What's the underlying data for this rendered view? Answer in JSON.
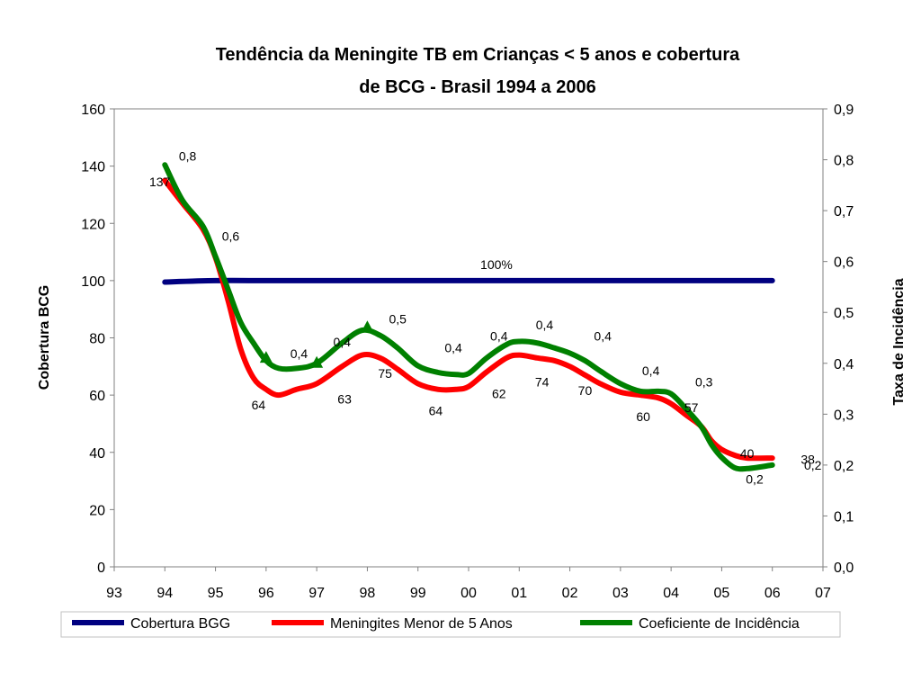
{
  "chart_data": {
    "type": "line",
    "title_line1": "Tendência da Meningite TB em Crianças < 5 anos e cobertura",
    "title_line2": "de BCG - Brasil 1994 a 2006",
    "ylabel_left": "Cobertura BCG",
    "ylabel_right": "Taxa de Incidência",
    "x_ticks": [
      "93",
      "94",
      "95",
      "96",
      "97",
      "98",
      "99",
      "00",
      "01",
      "02",
      "03",
      "04",
      "05",
      "06",
      "07"
    ],
    "y_left_ticks": [
      "0",
      "20",
      "40",
      "60",
      "80",
      "100",
      "120",
      "140",
      "160"
    ],
    "y_right_ticks": [
      "0,0",
      "0,1",
      "0,2",
      "0,3",
      "0,4",
      "0,5",
      "0,6",
      "0,7",
      "0,8",
      "0,9"
    ],
    "ylim_left": [
      0,
      160
    ],
    "ylim_right": [
      0,
      0.9
    ],
    "xlim": [
      1993,
      2007
    ],
    "colors": {
      "cobertura": "#000080",
      "meningites": "#ff0000",
      "coeficiente": "#008000",
      "plot_border": "#808080"
    },
    "series": [
      {
        "key": "cobertura",
        "name": "Cobertura BGG",
        "axis": "left",
        "x": [
          1994,
          1995,
          1996,
          1997,
          1998,
          1999,
          2000,
          2001,
          2002,
          2003,
          2004,
          2005,
          2006
        ],
        "values": [
          99.5,
          100,
          100,
          100,
          100,
          100,
          100,
          100,
          100,
          100,
          100,
          100,
          100
        ]
      },
      {
        "key": "meningites",
        "name": "Meningites Menor de 5 Anos",
        "axis": "left",
        "x": [
          1994,
          1994.35,
          1994.75,
          1995.0,
          1995.25,
          1995.5,
          1995.75,
          1996.0,
          1996.25,
          1996.6,
          1997.0,
          1997.5,
          1997.9,
          1998.25,
          1998.6,
          1999.0,
          1999.4,
          1999.75,
          2000.0,
          2000.35,
          2000.75,
          2001.0,
          2001.35,
          2001.7,
          2002.0,
          2002.3,
          2002.6,
          2003.0,
          2003.4,
          2003.75,
          2004.0,
          2004.3,
          2004.6,
          2004.8,
          2005.0,
          2005.25,
          2005.5,
          2006.0
        ],
        "values": [
          135,
          127,
          118,
          108,
          93,
          76,
          66,
          62,
          60,
          62,
          64,
          70,
          74,
          73,
          69,
          64,
          62,
          62,
          63,
          68,
          73,
          74,
          73,
          72,
          70,
          67,
          64,
          61,
          60,
          59,
          57,
          53,
          49,
          44,
          41,
          39,
          38,
          38
        ]
      },
      {
        "key": "coeficiente",
        "name": "Coeficiente de Incidência",
        "axis": "right",
        "x": [
          1994,
          1994.35,
          1994.75,
          1995.0,
          1995.25,
          1995.5,
          1995.75,
          1996.0,
          1996.25,
          1996.6,
          1997.0,
          1997.5,
          1997.9,
          1998.25,
          1998.6,
          1999.0,
          1999.4,
          1999.75,
          2000.0,
          2000.35,
          2000.75,
          2001.0,
          2001.35,
          2001.7,
          2002.0,
          2002.3,
          2002.6,
          2003.0,
          2003.4,
          2003.75,
          2004.0,
          2004.3,
          2004.6,
          2004.8,
          2005.0,
          2005.25,
          2005.5,
          2006.0
        ],
        "values": [
          0.79,
          0.72,
          0.67,
          0.61,
          0.545,
          0.48,
          0.44,
          0.405,
          0.39,
          0.39,
          0.4,
          0.44,
          0.465,
          0.455,
          0.43,
          0.395,
          0.382,
          0.378,
          0.38,
          0.41,
          0.437,
          0.443,
          0.44,
          0.43,
          0.42,
          0.405,
          0.385,
          0.36,
          0.345,
          0.345,
          0.34,
          0.31,
          0.275,
          0.24,
          0.215,
          0.195,
          0.193,
          0.2
        ]
      }
    ],
    "markers": [
      {
        "series": "coeficiente",
        "x": 1996,
        "value": 0.41
      },
      {
        "series": "coeficiente",
        "x": 1997,
        "value": 0.4
      },
      {
        "series": "coeficiente",
        "x": 1998,
        "value": 0.47
      }
    ],
    "annotations": [
      {
        "text": "0,8",
        "x": 1994.45,
        "y_left": 142
      },
      {
        "text": "137",
        "x": 1993.9,
        "y_left": 133
      },
      {
        "text": "0,6",
        "x": 1995.3,
        "y_left": 114
      },
      {
        "text": "100%",
        "x": 2000.55,
        "y_left": 104
      },
      {
        "text": "0,5",
        "x": 1998.6,
        "y_left": 85
      },
      {
        "text": "0,4",
        "x": 1996.65,
        "y_left": 73
      },
      {
        "text": "0,4",
        "x": 1997.5,
        "y_left": 77
      },
      {
        "text": "75",
        "x": 1998.35,
        "y_left": 66
      },
      {
        "text": "64",
        "x": 1995.85,
        "y_left": 55
      },
      {
        "text": "63",
        "x": 1997.55,
        "y_left": 57
      },
      {
        "text": "0,4",
        "x": 1999.7,
        "y_left": 75
      },
      {
        "text": "64",
        "x": 1999.35,
        "y_left": 53
      },
      {
        "text": "0,4",
        "x": 2000.6,
        "y_left": 79
      },
      {
        "text": "62",
        "x": 2000.6,
        "y_left": 59
      },
      {
        "text": "0,4",
        "x": 2001.5,
        "y_left": 83
      },
      {
        "text": "74",
        "x": 2001.45,
        "y_left": 63
      },
      {
        "text": "0,4",
        "x": 2002.65,
        "y_left": 79
      },
      {
        "text": "70",
        "x": 2002.3,
        "y_left": 60
      },
      {
        "text": "0,4",
        "x": 2003.6,
        "y_left": 67
      },
      {
        "text": "60",
        "x": 2003.45,
        "y_left": 51
      },
      {
        "text": "0,3",
        "x": 2004.65,
        "y_left": 63
      },
      {
        "text": "57",
        "x": 2004.4,
        "y_left": 54
      },
      {
        "text": "40",
        "x": 2005.5,
        "y_left": 38
      },
      {
        "text": "38",
        "x": 2006.7,
        "y_left": 36
      },
      {
        "text": "0,2",
        "x": 2006.8,
        "y_left": 34
      },
      {
        "text": "0,2",
        "x": 2005.65,
        "y_left": 29
      }
    ],
    "legend_position": "bottom"
  }
}
